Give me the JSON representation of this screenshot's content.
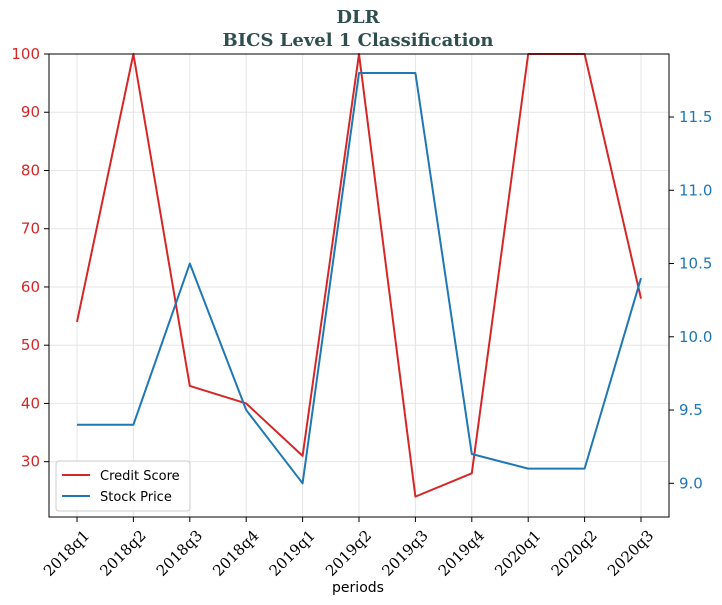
{
  "chart_data": {
    "type": "line",
    "title": "DLR",
    "subtitle": "BICS Level 1 Classification",
    "xlabel": "periods",
    "categories": [
      "2018q1",
      "2018q2",
      "2018q3",
      "2018q4",
      "2019q1",
      "2019q2",
      "2019q3",
      "2019q4",
      "2020q1",
      "2020q2",
      "2020q3"
    ],
    "left_axis": {
      "ylim": [
        20.5,
        100
      ],
      "ticks": [
        "30",
        "40",
        "50",
        "60",
        "70",
        "80",
        "90",
        "100"
      ],
      "tick_values": [
        30,
        40,
        50,
        60,
        70,
        80,
        90,
        100
      ],
      "color": "#d62728"
    },
    "right_axis": {
      "ylim": [
        8.77,
        11.93
      ],
      "ticks": [
        "9.0",
        "9.5",
        "10.0",
        "10.5",
        "11.0",
        "11.5"
      ],
      "tick_values": [
        9.0,
        9.5,
        10.0,
        10.5,
        11.0,
        11.5
      ],
      "color": "#1f77b4"
    },
    "grid": true,
    "legend_position": "lower-left",
    "series": [
      {
        "name": "Credit Score",
        "axis": "left",
        "color": "#d62728",
        "values": [
          54,
          100,
          43,
          40,
          31,
          100,
          24,
          28,
          100,
          100,
          58
        ]
      },
      {
        "name": "Stock Price",
        "axis": "right",
        "color": "#1f77b4",
        "values": [
          9.4,
          9.4,
          10.5,
          9.5,
          9.0,
          11.8,
          11.8,
          9.2,
          9.1,
          9.1,
          10.4
        ]
      }
    ]
  }
}
